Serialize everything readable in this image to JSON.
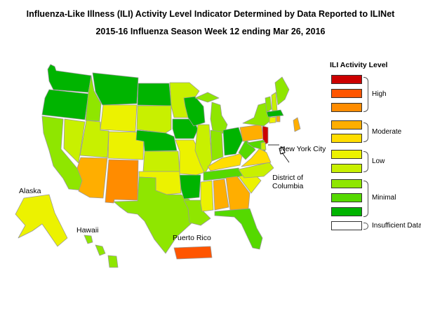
{
  "title": {
    "line1": "Influenza-Like Illness (ILI) Activity Level Indicator Determined by Data Reported to ILINet",
    "line2": "2015-16  Influenza Season Week  12 ending Mar 26, 2016"
  },
  "map_labels": {
    "alaska": "Alaska",
    "hawaii": "Hawaii",
    "puerto_rico": "Puerto Rico",
    "new_york_city": "New York City",
    "district_of_columbia_line1": "District of",
    "district_of_columbia_line2": "Columbia"
  },
  "legend": {
    "title": "ILI Activity Level",
    "levels": [
      {
        "level": 10,
        "color": "#cc0000"
      },
      {
        "level": 9,
        "color": "#ff5500"
      },
      {
        "level": 8,
        "color": "#ff8c00"
      },
      {
        "level": 7,
        "color": "#ffae00"
      },
      {
        "level": 6,
        "color": "#ffdd00"
      },
      {
        "level": 5,
        "color": "#ecf200"
      },
      {
        "level": 4,
        "color": "#c8f000"
      },
      {
        "level": 3,
        "color": "#8fe600"
      },
      {
        "level": 2,
        "color": "#55d900"
      },
      {
        "level": 1,
        "color": "#00b400"
      },
      {
        "level": 0,
        "color": "#ffffff"
      }
    ],
    "groups": [
      {
        "label": "High"
      },
      {
        "label": "Moderate"
      },
      {
        "label": "Low"
      },
      {
        "label": "Minimal"
      },
      {
        "label": "Insufficient Data"
      }
    ]
  },
  "regions": [
    {
      "name": "Washington",
      "level": 1
    },
    {
      "name": "Oregon",
      "level": 1
    },
    {
      "name": "California",
      "level": 3
    },
    {
      "name": "Nevada",
      "level": 4
    },
    {
      "name": "Idaho",
      "level": 3
    },
    {
      "name": "Montana",
      "level": 1
    },
    {
      "name": "Wyoming",
      "level": 5
    },
    {
      "name": "Utah",
      "level": 4
    },
    {
      "name": "Arizona",
      "level": 7
    },
    {
      "name": "Colorado",
      "level": 5
    },
    {
      "name": "New Mexico",
      "level": 8
    },
    {
      "name": "North Dakota",
      "level": 1
    },
    {
      "name": "South Dakota",
      "level": 4
    },
    {
      "name": "Nebraska",
      "level": 1
    },
    {
      "name": "Kansas",
      "level": 4
    },
    {
      "name": "Oklahoma",
      "level": 5
    },
    {
      "name": "Texas",
      "level": 3
    },
    {
      "name": "Minnesota",
      "level": 4
    },
    {
      "name": "Iowa",
      "level": 1
    },
    {
      "name": "Missouri",
      "level": 5
    },
    {
      "name": "Arkansas",
      "level": 1
    },
    {
      "name": "Louisiana",
      "level": 3
    },
    {
      "name": "Wisconsin",
      "level": 1
    },
    {
      "name": "Illinois",
      "level": 4
    },
    {
      "name": "Michigan",
      "level": 3
    },
    {
      "name": "Indiana",
      "level": 3
    },
    {
      "name": "Ohio",
      "level": 1
    },
    {
      "name": "Kentucky",
      "level": 6
    },
    {
      "name": "Tennessee",
      "level": 2
    },
    {
      "name": "Mississippi",
      "level": 5
    },
    {
      "name": "Alabama",
      "level": 7
    },
    {
      "name": "Georgia",
      "level": 7
    },
    {
      "name": "Florida",
      "level": 2
    },
    {
      "name": "South Carolina",
      "level": 5
    },
    {
      "name": "North Carolina",
      "level": 4
    },
    {
      "name": "Virginia",
      "level": 6
    },
    {
      "name": "West Virginia",
      "level": 2
    },
    {
      "name": "Pennsylvania",
      "level": 7
    },
    {
      "name": "New York",
      "level": 3
    },
    {
      "name": "New Jersey",
      "level": 10
    },
    {
      "name": "Maryland",
      "level": 2
    },
    {
      "name": "Delaware",
      "level": 4
    },
    {
      "name": "Vermont",
      "level": 3
    },
    {
      "name": "New Hampshire",
      "level": 4
    },
    {
      "name": "Maine",
      "level": 3
    },
    {
      "name": "Massachusetts",
      "level": 1
    },
    {
      "name": "Connecticut",
      "level": 5
    },
    {
      "name": "Rhode Island",
      "level": 7
    },
    {
      "name": "Alaska",
      "level": 5
    },
    {
      "name": "Hawaii",
      "level": 3
    },
    {
      "name": "Puerto Rico",
      "level": 9
    },
    {
      "name": "New York City",
      "level": 7
    },
    {
      "name": "District of Columbia",
      "level": 0
    }
  ]
}
